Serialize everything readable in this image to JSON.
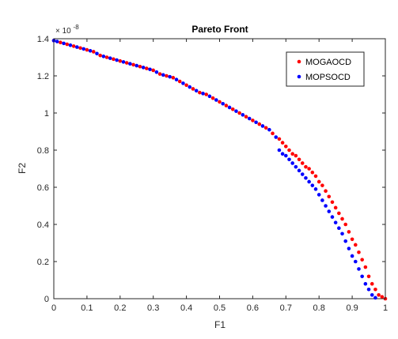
{
  "chart_data": {
    "type": "scatter",
    "title": "Pareto Front",
    "xlabel": "F1",
    "ylabel": "F2",
    "y_exponent_label": "× 10",
    "y_exponent_power": "-8",
    "xlim": [
      0,
      1
    ],
    "ylim": [
      0,
      1.4
    ],
    "x_ticks": [
      "0",
      "0.1",
      "0.2",
      "0.3",
      "0.4",
      "0.5",
      "0.6",
      "0.7",
      "0.8",
      "0.9",
      "1"
    ],
    "y_ticks": [
      "0",
      "0.2",
      "0.4",
      "0.6",
      "0.8",
      "1",
      "1.2",
      "1.4"
    ],
    "grid": false,
    "legend_position": "top-right",
    "series": [
      {
        "name": "MOGAOCD",
        "color": "#ff0000",
        "points": [
          [
            0.0,
            1.39
          ],
          [
            0.02,
            1.38
          ],
          [
            0.04,
            1.37
          ],
          [
            0.06,
            1.36
          ],
          [
            0.08,
            1.35
          ],
          [
            0.1,
            1.34
          ],
          [
            0.12,
            1.33
          ],
          [
            0.14,
            1.31
          ],
          [
            0.16,
            1.3
          ],
          [
            0.18,
            1.29
          ],
          [
            0.2,
            1.28
          ],
          [
            0.22,
            1.27
          ],
          [
            0.24,
            1.26
          ],
          [
            0.26,
            1.25
          ],
          [
            0.28,
            1.24
          ],
          [
            0.3,
            1.23
          ],
          [
            0.32,
            1.21
          ],
          [
            0.34,
            1.2
          ],
          [
            0.36,
            1.19
          ],
          [
            0.38,
            1.17
          ],
          [
            0.4,
            1.15
          ],
          [
            0.42,
            1.13
          ],
          [
            0.44,
            1.11
          ],
          [
            0.46,
            1.1
          ],
          [
            0.48,
            1.08
          ],
          [
            0.5,
            1.06
          ],
          [
            0.52,
            1.04
          ],
          [
            0.54,
            1.02
          ],
          [
            0.56,
            1.0
          ],
          [
            0.58,
            0.98
          ],
          [
            0.6,
            0.96
          ],
          [
            0.62,
            0.94
          ],
          [
            0.64,
            0.92
          ],
          [
            0.66,
            0.89
          ],
          [
            0.68,
            0.86
          ],
          [
            0.69,
            0.84
          ],
          [
            0.7,
            0.82
          ],
          [
            0.71,
            0.8
          ],
          [
            0.72,
            0.78
          ],
          [
            0.73,
            0.77
          ],
          [
            0.74,
            0.75
          ],
          [
            0.75,
            0.73
          ],
          [
            0.76,
            0.71
          ],
          [
            0.77,
            0.7
          ],
          [
            0.78,
            0.68
          ],
          [
            0.79,
            0.66
          ],
          [
            0.8,
            0.63
          ],
          [
            0.81,
            0.61
          ],
          [
            0.82,
            0.58
          ],
          [
            0.83,
            0.55
          ],
          [
            0.84,
            0.52
          ],
          [
            0.85,
            0.49
          ],
          [
            0.86,
            0.46
          ],
          [
            0.87,
            0.43
          ],
          [
            0.88,
            0.4
          ],
          [
            0.89,
            0.36
          ],
          [
            0.9,
            0.32
          ],
          [
            0.91,
            0.29
          ],
          [
            0.92,
            0.25
          ],
          [
            0.93,
            0.21
          ],
          [
            0.94,
            0.17
          ],
          [
            0.95,
            0.12
          ],
          [
            0.96,
            0.08
          ],
          [
            0.97,
            0.05
          ],
          [
            0.98,
            0.02
          ],
          [
            0.99,
            0.01
          ],
          [
            1.0,
            0.0
          ]
        ]
      },
      {
        "name": "MOPSOCD",
        "color": "#0000ff",
        "points": [
          [
            0.0,
            1.39
          ],
          [
            0.01,
            1.385
          ],
          [
            0.03,
            1.375
          ],
          [
            0.05,
            1.365
          ],
          [
            0.07,
            1.355
          ],
          [
            0.09,
            1.345
          ],
          [
            0.11,
            1.335
          ],
          [
            0.13,
            1.32
          ],
          [
            0.15,
            1.305
          ],
          [
            0.17,
            1.295
          ],
          [
            0.19,
            1.285
          ],
          [
            0.21,
            1.275
          ],
          [
            0.23,
            1.265
          ],
          [
            0.25,
            1.255
          ],
          [
            0.27,
            1.245
          ],
          [
            0.29,
            1.235
          ],
          [
            0.31,
            1.22
          ],
          [
            0.33,
            1.205
          ],
          [
            0.35,
            1.195
          ],
          [
            0.37,
            1.18
          ],
          [
            0.39,
            1.16
          ],
          [
            0.41,
            1.14
          ],
          [
            0.43,
            1.12
          ],
          [
            0.45,
            1.105
          ],
          [
            0.47,
            1.09
          ],
          [
            0.49,
            1.07
          ],
          [
            0.51,
            1.05
          ],
          [
            0.53,
            1.03
          ],
          [
            0.55,
            1.01
          ],
          [
            0.57,
            0.99
          ],
          [
            0.59,
            0.97
          ],
          [
            0.61,
            0.95
          ],
          [
            0.63,
            0.93
          ],
          [
            0.65,
            0.91
          ],
          [
            0.67,
            0.87
          ],
          [
            0.68,
            0.8
          ],
          [
            0.69,
            0.78
          ],
          [
            0.7,
            0.77
          ],
          [
            0.71,
            0.75
          ],
          [
            0.72,
            0.73
          ],
          [
            0.73,
            0.71
          ],
          [
            0.74,
            0.69
          ],
          [
            0.75,
            0.67
          ],
          [
            0.76,
            0.65
          ],
          [
            0.77,
            0.63
          ],
          [
            0.78,
            0.61
          ],
          [
            0.79,
            0.59
          ],
          [
            0.8,
            0.56
          ],
          [
            0.81,
            0.53
          ],
          [
            0.82,
            0.5
          ],
          [
            0.83,
            0.47
          ],
          [
            0.84,
            0.44
          ],
          [
            0.85,
            0.41
          ],
          [
            0.86,
            0.38
          ],
          [
            0.87,
            0.35
          ],
          [
            0.88,
            0.31
          ],
          [
            0.89,
            0.27
          ],
          [
            0.9,
            0.23
          ],
          [
            0.91,
            0.2
          ],
          [
            0.92,
            0.16
          ],
          [
            0.93,
            0.12
          ],
          [
            0.94,
            0.08
          ],
          [
            0.95,
            0.05
          ],
          [
            0.96,
            0.02
          ],
          [
            0.97,
            0.005
          ]
        ]
      }
    ]
  }
}
